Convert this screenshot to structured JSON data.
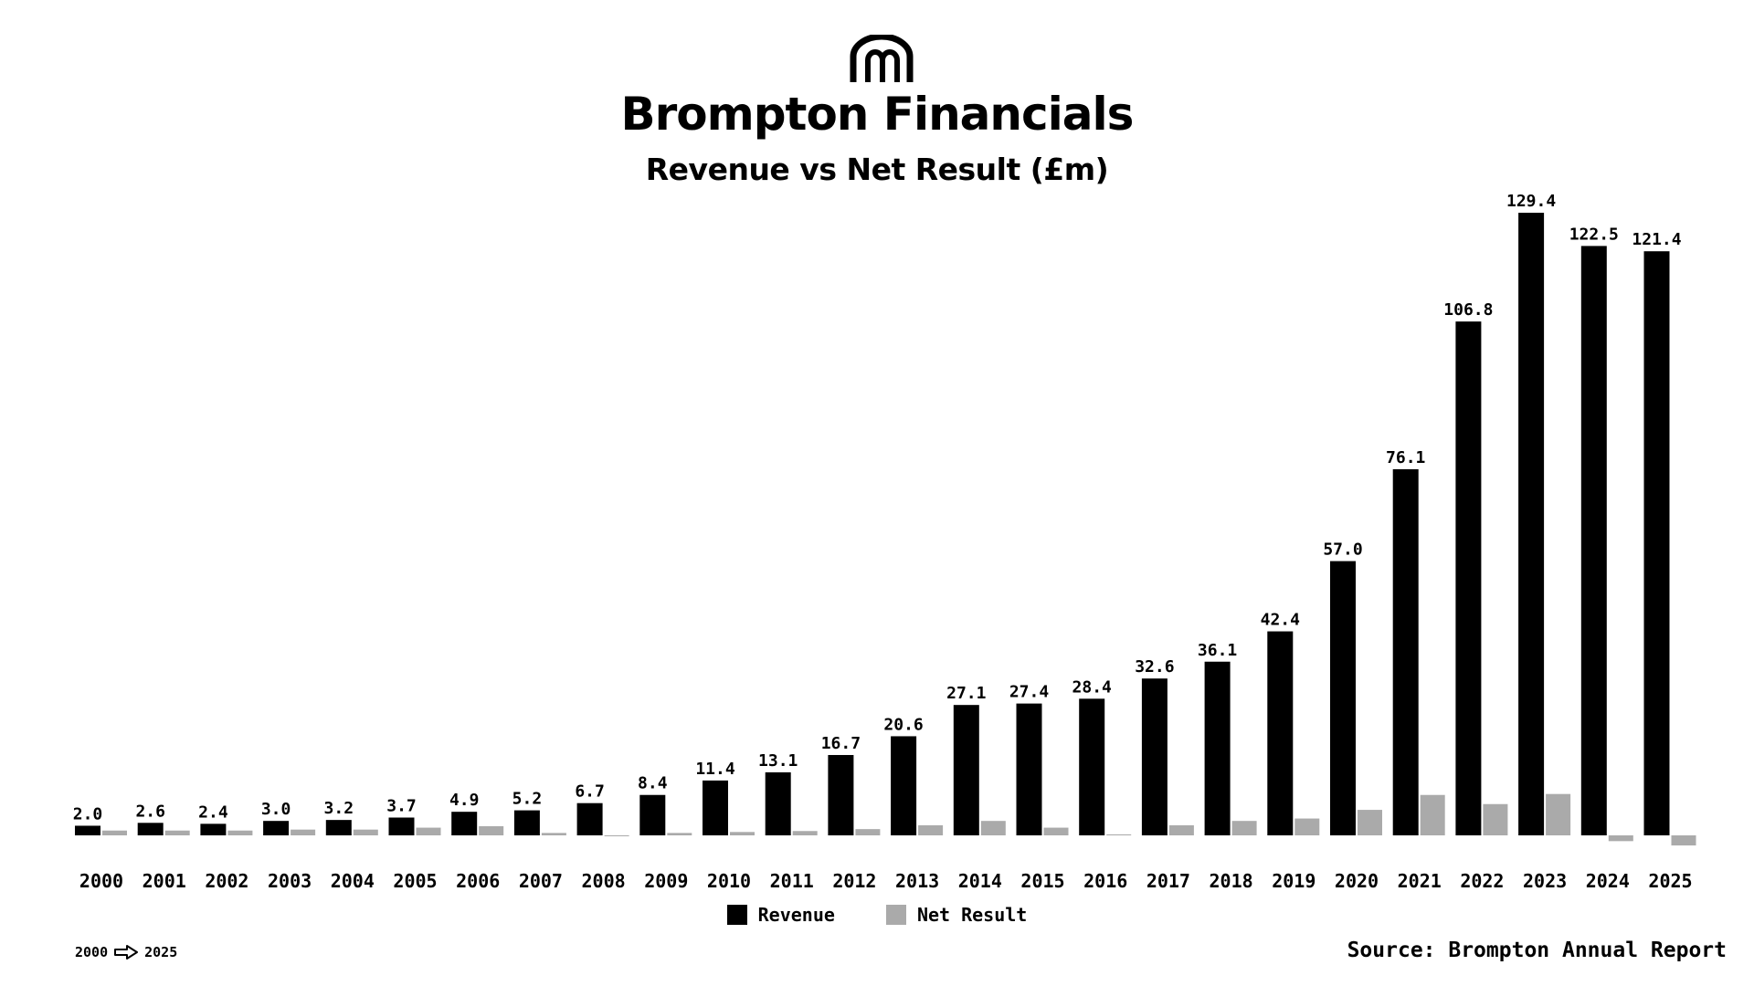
{
  "header": {
    "logo_icon": "brompton-logo-icon",
    "title": "Brompton Financials",
    "subtitle": "Revenue vs Net Result (£m)"
  },
  "chart_data": {
    "type": "bar",
    "categories": [
      "2000",
      "2001",
      "2002",
      "2003",
      "2004",
      "2005",
      "2006",
      "2007",
      "2008",
      "2009",
      "2010",
      "2011",
      "2012",
      "2013",
      "2014",
      "2015",
      "2016",
      "2017",
      "2018",
      "2019",
      "2020",
      "2021",
      "2022",
      "2023",
      "2024",
      "2025"
    ],
    "series": [
      {
        "name": "Revenue",
        "color": "#000000",
        "values": [
          2.0,
          2.6,
          2.4,
          3.0,
          3.2,
          3.7,
          4.9,
          5.2,
          6.7,
          8.4,
          11.4,
          13.1,
          16.7,
          20.6,
          27.1,
          27.4,
          28.4,
          32.6,
          36.1,
          42.4,
          57.0,
          76.1,
          106.8,
          129.4,
          122.5,
          121.4
        ],
        "labels": [
          "2.0",
          "2.6",
          "2.4",
          "3.0",
          "3.2",
          "3.7",
          "4.9",
          "5.2",
          "6.7",
          "8.4",
          "11.4",
          "13.1",
          "16.7",
          "20.6",
          "27.1",
          "27.4",
          "28.4",
          "32.6",
          "36.1",
          "42.4",
          "57.0",
          "76.1",
          "106.8",
          "129.4",
          "122.5",
          "121.4"
        ]
      },
      {
        "name": "Net Result",
        "color": "#aaaaaa",
        "values": [
          1.0,
          1.0,
          1.0,
          1.2,
          1.2,
          1.6,
          1.9,
          0.5,
          0.0,
          0.5,
          0.7,
          0.9,
          1.3,
          2.1,
          3.0,
          1.6,
          0.2,
          2.1,
          3.0,
          3.5,
          5.3,
          8.4,
          6.5,
          8.6,
          -1.2,
          -2.1
        ]
      }
    ],
    "ylim": [
      -3,
      130
    ],
    "grid": false,
    "legend_position": "bottom-center"
  },
  "legend": {
    "revenue_label": "Revenue",
    "net_label": "Net Result"
  },
  "footer": {
    "range_start": "2000",
    "range_arrow_icon": "arrow-right-icon",
    "range_end": "2025",
    "source": "Source: Brompton Annual Report"
  }
}
